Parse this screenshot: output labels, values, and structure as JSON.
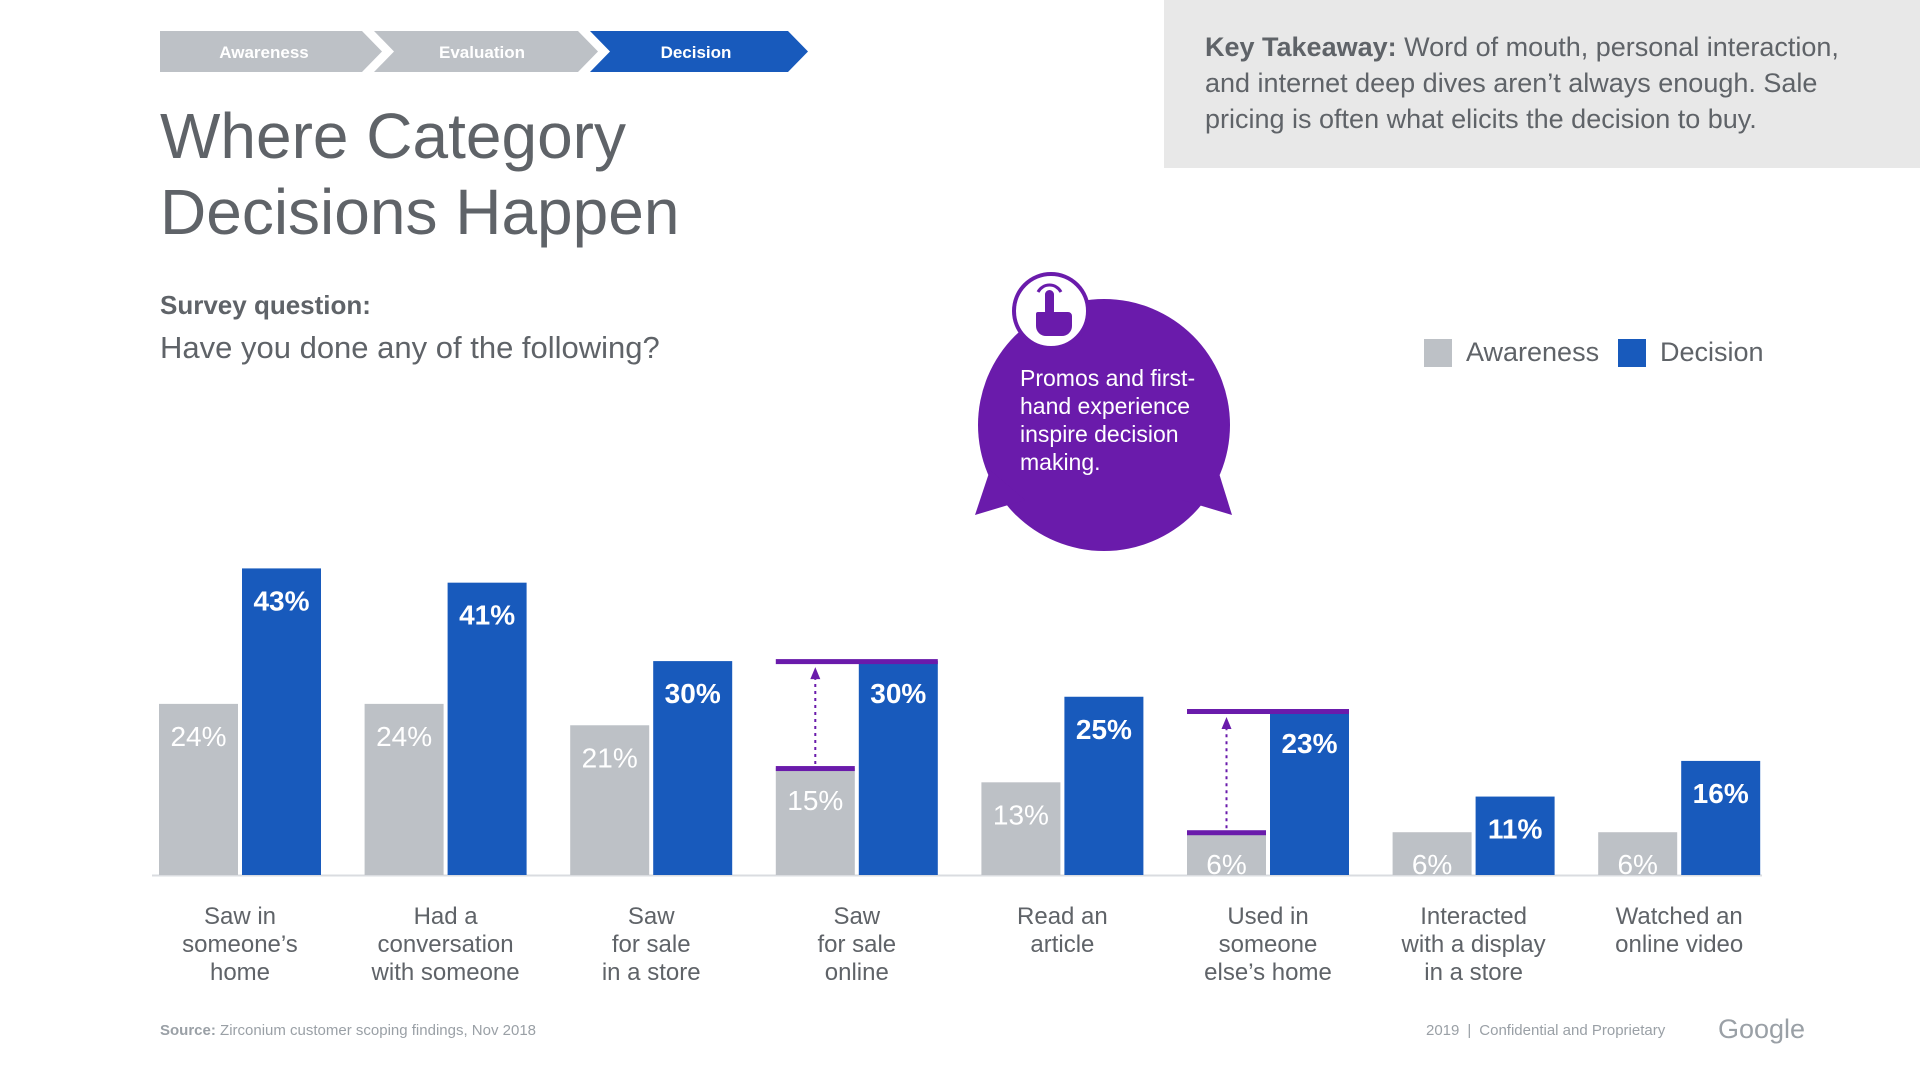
{
  "stages": [
    {
      "label": "Awareness",
      "active": false
    },
    {
      "label": "Evaluation",
      "active": false
    },
    {
      "label": "Decision",
      "active": true
    }
  ],
  "title_line1": "Where Category",
  "title_line2": "Decisions Happen",
  "survey_label": "Survey question:",
  "survey_question": "Have you done any of the following?",
  "takeaway": {
    "label": "Key Takeaway:",
    "text": "Word of mouth, personal interaction, and internet deep dives aren’t always enough. Sale pricing is often what elicits the decision to buy."
  },
  "callout": {
    "icon": "tap-hand-icon",
    "text": "Promos and first-hand experience inspire decision making."
  },
  "colors": {
    "awareness": "#bdc1c6",
    "decision": "#185abc",
    "purple": "#6a1bab",
    "stage_inactive": "#bdc1c6",
    "stage_active": "#185abc",
    "text": "#5f6368"
  },
  "chart_data": {
    "type": "bar",
    "categories": [
      [
        "Saw in",
        "someone’s",
        "home"
      ],
      [
        "Had a",
        "conversation",
        "with someone"
      ],
      [
        "Saw",
        "for sale",
        "in a store"
      ],
      [
        "Saw",
        "for sale",
        "online"
      ],
      [
        "Read an",
        "article"
      ],
      [
        "Used in",
        "someone",
        "else’s home"
      ],
      [
        "Interacted",
        "with a display",
        "in a store"
      ],
      [
        "Watched an",
        "online video"
      ]
    ],
    "series": [
      {
        "name": "Awareness",
        "values": [
          24,
          24,
          21,
          15,
          13,
          6,
          6,
          6
        ]
      },
      {
        "name": "Decision",
        "values": [
          43,
          41,
          30,
          30,
          25,
          23,
          11,
          16
        ]
      }
    ],
    "value_suffix": "%",
    "highlighted_categories": [
      3,
      5
    ],
    "legend_position": "top-right",
    "grid": false
  },
  "source": {
    "label": "Source:",
    "text": "Zirconium customer scoping findings, Nov 2018"
  },
  "footer": {
    "year": "2019",
    "separator": "|",
    "text": "Confidential and Proprietary",
    "logo": "Google"
  }
}
